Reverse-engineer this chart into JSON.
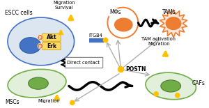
{
  "bg_color": "#ffffff",
  "escc_label": "ESCC cells",
  "msc_label": "MSCs",
  "mf_label": "MΦs",
  "tam_label": "TAMs",
  "caf_label": "CAFs",
  "postn_label": "POSTN",
  "itgb4_label": "ITGB4",
  "akt_label": "Akt",
  "erk_label": "Erk",
  "migration_survival": "Migration\nSurvival",
  "tam_activation": "TAM activation\nMigration",
  "direct_contact": "Direct contact",
  "migration_msc": "Migration",
  "escc_cell_fc": "#dce6f1",
  "escc_cell_ec": "#4472c4",
  "escc_nucleus_fc": "#4472c4",
  "escc_nucleus_ec": "#2e5fa3",
  "msc_cell_fc": "#e2efda",
  "msc_cell_ec": "#70ad47",
  "msc_nucleus_fc": "#70ad47",
  "msc_nucleus_ec": "#507e34",
  "mf_body_fc": "#ed7d31",
  "mf_outer_ec": "#ed7d31",
  "tam_body_fc": "#ed7d31",
  "tam_spike_fc": "#fbe5d6",
  "tam_spike_ec": "#ed7d31",
  "caf_cell_fc": "#e2efda",
  "caf_cell_ec": "#70ad47",
  "caf_nucleus_fc": "#70ad47",
  "caf_nucleus_ec": "#507e34",
  "postn_dot_color": "#ffc000",
  "arrow_up_color": "#ffc000",
  "gray_arrow_color": "#b0b0b0",
  "itgb4_bar_color": "#4472c4",
  "p_circle_color": "#ed7d31",
  "akt_erk_fc": "#ffd966",
  "akt_erk_ec": "#c9a800",
  "font_size": 5.5,
  "small_font": 4.8
}
